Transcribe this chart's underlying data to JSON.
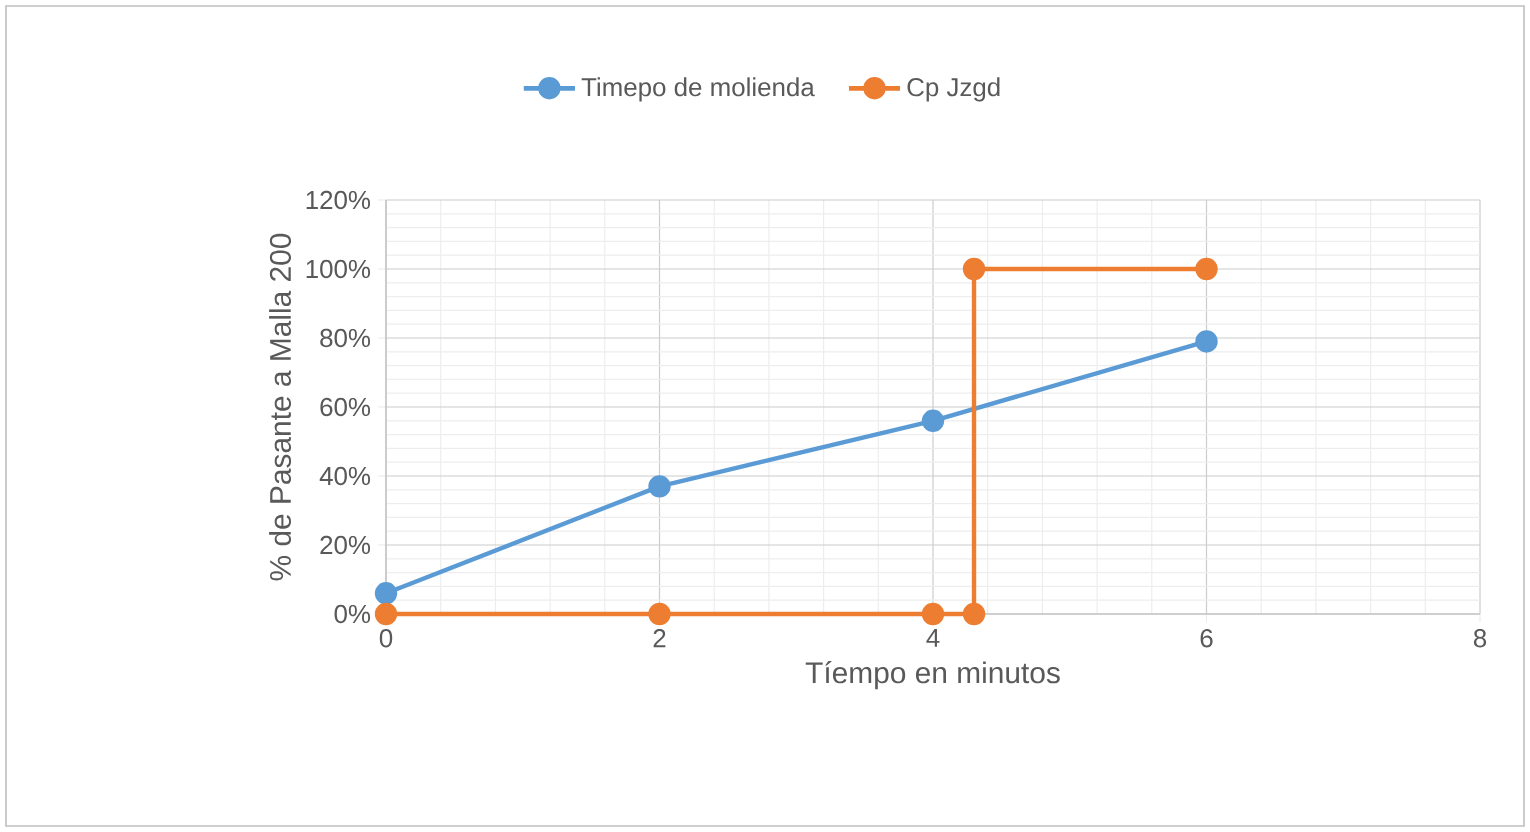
{
  "chart_data": {
    "type": "line",
    "xlabel": "Tíempo en minutos",
    "ylabel": "% de Pasante a Malla 200",
    "series": [
      {
        "name": "Timepo de molienda",
        "color": "#5b9bd5",
        "x": [
          0,
          2,
          4,
          6
        ],
        "values": [
          6,
          37,
          56,
          79
        ]
      },
      {
        "name": "Cp Jzgd",
        "color": "#ed7d31",
        "x": [
          0,
          2,
          4,
          4.3,
          4.3,
          6
        ],
        "values": [
          0,
          0,
          0,
          0,
          100,
          100
        ]
      }
    ],
    "xlim": [
      0,
      8
    ],
    "xticks": [
      0,
      2,
      4,
      6,
      8
    ],
    "ylim": [
      0,
      120
    ],
    "yticks": [
      {
        "value": 0,
        "label": "0%"
      },
      {
        "value": 20,
        "label": "20%"
      },
      {
        "value": 40,
        "label": "40%"
      },
      {
        "value": 60,
        "label": "60%"
      },
      {
        "value": 80,
        "label": "80%"
      },
      {
        "value": 100,
        "label": "100%"
      },
      {
        "value": 120,
        "label": "120%"
      }
    ],
    "grid": true,
    "legend": "top",
    "marker": "circle",
    "line_style": "solid"
  }
}
